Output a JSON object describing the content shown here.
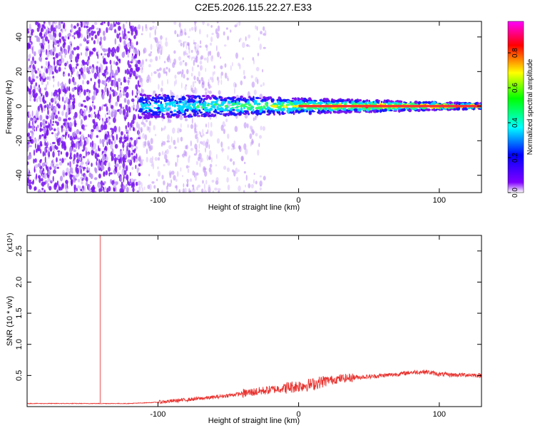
{
  "title": "C2E5.2026.115.22.27.E33",
  "chart_data": [
    {
      "type": "heatmap",
      "xlabel": "Height of straight line (km)",
      "ylabel": "Frequency (Hz)",
      "xlim": [
        -193,
        130
      ],
      "ylim": [
        -50,
        49
      ],
      "x_ticks": [
        -100,
        0,
        100
      ],
      "y_ticks": [
        -40,
        -20,
        0,
        20,
        40
      ],
      "colorbar": {
        "label": "Normalized spectral amplitude",
        "range": [
          0,
          0.98
        ],
        "ticks": [
          "0.0",
          "0.2",
          "0.4",
          "0.6",
          "0.8"
        ],
        "colors": [
          "#ffffff",
          "#8000ff",
          "#0000ff",
          "#00ffff",
          "#00ff00",
          "#ffff00",
          "#ff0000",
          "#ff00ff"
        ]
      },
      "features": {
        "noise_region_x": [
          -193,
          -113
        ],
        "band_start_x": -113,
        "band_halfwidth_hz_near_start": 7,
        "band_halfwidth_hz_at_end": 1.5,
        "center_frequency_hz": 0
      }
    },
    {
      "type": "line",
      "xlabel": "Height of straight line (km)",
      "ylabel": "SNR (10 * v/v)",
      "y_multiplier": "(x10⁴)",
      "xlim": [
        -193,
        130
      ],
      "ylim": [
        0,
        2.75
      ],
      "x_ticks": [
        -100,
        0,
        100
      ],
      "y_ticks": [
        "0.5",
        "1.0",
        "1.5",
        "2.0",
        "2.5"
      ],
      "series": [
        {
          "color": "#e8322e",
          "x": [
            -193,
            -160,
            -140,
            -120,
            -100,
            -80,
            -60,
            -40,
            -20,
            0,
            10,
            20,
            30,
            40,
            50,
            60,
            70,
            80,
            90,
            100,
            110,
            120,
            130
          ],
          "y": [
            0.05,
            0.05,
            0.05,
            0.05,
            0.07,
            0.11,
            0.15,
            0.21,
            0.27,
            0.33,
            0.36,
            0.42,
            0.45,
            0.47,
            0.48,
            0.5,
            0.52,
            0.55,
            0.56,
            0.52,
            0.51,
            0.51,
            0.5
          ]
        }
      ],
      "spike": {
        "x": -141,
        "y": 2.75,
        "color": "#f08080"
      }
    }
  ]
}
